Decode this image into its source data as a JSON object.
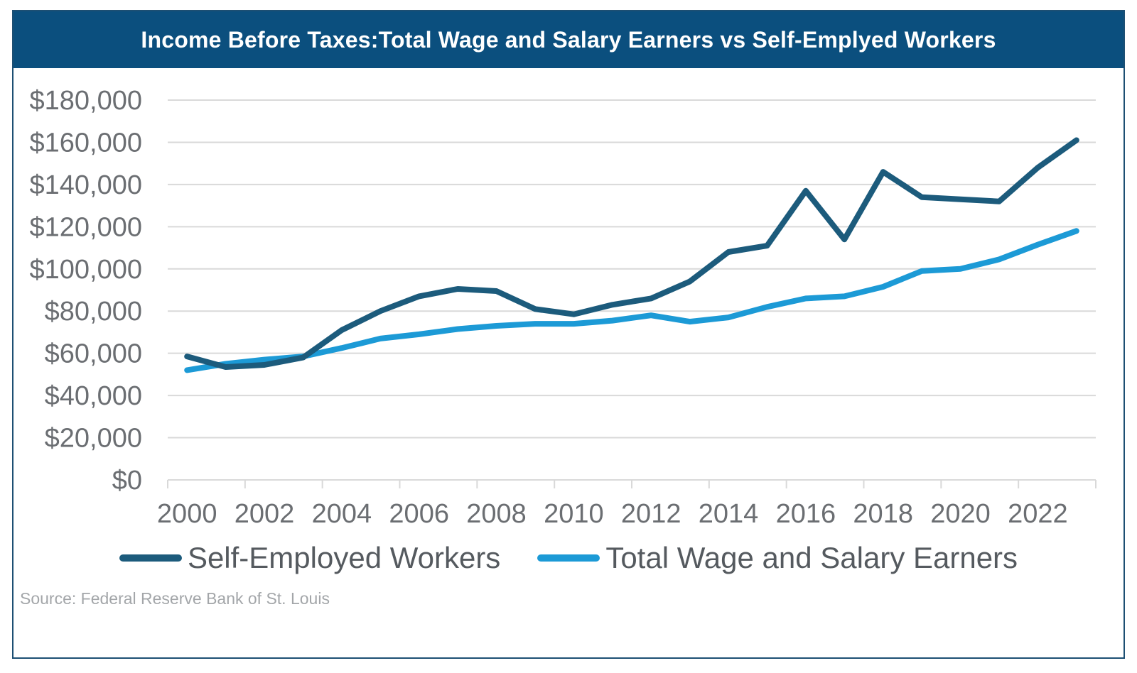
{
  "header": {
    "title": "Income Before Taxes:Total Wage and Salary Earners vs Self-Emplyed Workers"
  },
  "colors": {
    "title_bg": "#0b4f7e",
    "self_employed": "#1c5b7c",
    "wage_salary": "#1c9ad6",
    "grid": "#d9d9d9"
  },
  "chart_data": {
    "type": "line",
    "title": "Income Before Taxes:Total Wage and Salary Earners vs Self-Emplyed Workers",
    "x": [
      2000,
      2001,
      2002,
      2003,
      2004,
      2005,
      2006,
      2007,
      2008,
      2009,
      2010,
      2011,
      2012,
      2013,
      2014,
      2015,
      2016,
      2017,
      2018,
      2019,
      2020,
      2021,
      2022,
      2023
    ],
    "series": [
      {
        "name": "Self-Employed Workers",
        "values": [
          58500,
          53500,
          54500,
          58000,
          71000,
          80000,
          87000,
          90500,
          89500,
          81000,
          78500,
          83000,
          86000,
          94000,
          108000,
          111000,
          137000,
          114000,
          146000,
          134000,
          133000,
          132000,
          148000,
          161000
        ]
      },
      {
        "name": "Total Wage and Salary Earners",
        "values": [
          52000,
          55000,
          57000,
          58500,
          62500,
          67000,
          69000,
          71500,
          73000,
          74000,
          74000,
          75500,
          78000,
          75000,
          77000,
          82000,
          86000,
          87000,
          91500,
          99000,
          100000,
          104500,
          111500,
          118000
        ]
      }
    ],
    "y_ticks": [
      "$0",
      "$20,000",
      "$40,000",
      "$60,000",
      "$80,000",
      "$100,000",
      "$120,000",
      "$140,000",
      "$160,000",
      "$180,000"
    ],
    "x_tick_labels": [
      "2000",
      "2002",
      "2004",
      "2006",
      "2008",
      "2010",
      "2012",
      "2014",
      "2016",
      "2018",
      "2020",
      "2022"
    ],
    "ylim": [
      0,
      180000
    ],
    "xlabel": "",
    "ylabel": "",
    "grid": true,
    "legend_position": "bottom"
  },
  "legend": {
    "items": [
      {
        "label": "Self-Employed Workers"
      },
      {
        "label": "Total Wage and Salary Earners"
      }
    ]
  },
  "source": "Source: Federal Reserve Bank of St. Louis"
}
